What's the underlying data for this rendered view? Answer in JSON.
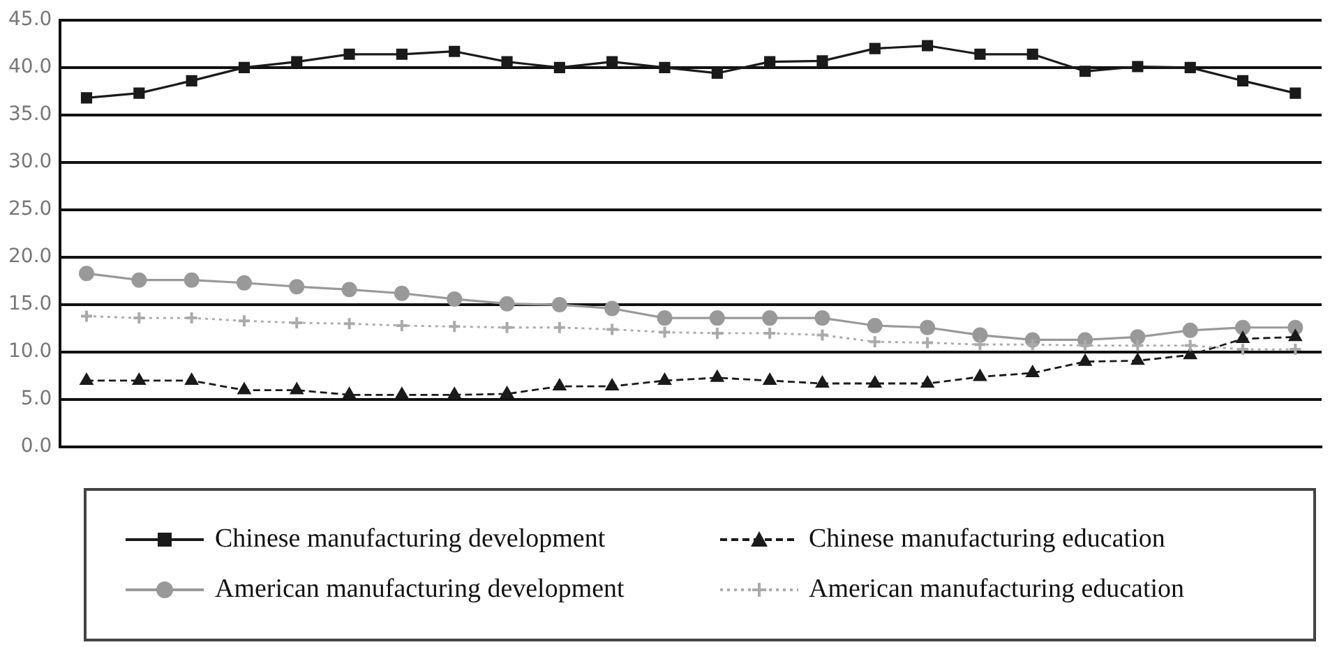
{
  "chart_data": {
    "type": "line",
    "categories": [
      null,
      null,
      null,
      null,
      null,
      null,
      null,
      null,
      null,
      null,
      null,
      null,
      null,
      null,
      null,
      null,
      null,
      null,
      null,
      null,
      null,
      null,
      null,
      null
    ],
    "series": [
      {
        "name": "Chinese manufacturing development",
        "color": "#1a1a1a",
        "marker": "square",
        "line_style": "solid",
        "values": [
          36.8,
          37.3,
          38.6,
          40.0,
          40.6,
          41.4,
          41.4,
          41.7,
          40.6,
          40.0,
          40.6,
          40.0,
          39.4,
          40.6,
          40.7,
          42.0,
          42.3,
          41.4,
          41.4,
          39.6,
          40.1,
          40.0,
          38.6,
          37.3
        ]
      },
      {
        "name": "Chinese manufacturing education",
        "color": "#1a1a1a",
        "marker": "triangle",
        "line_style": "dashed",
        "values": [
          7.0,
          7.0,
          7.0,
          6.0,
          6.0,
          5.5,
          5.5,
          5.5,
          5.6,
          6.4,
          6.4,
          7.0,
          7.3,
          7.0,
          6.7,
          6.7,
          6.7,
          7.4,
          7.8,
          9.0,
          9.1,
          9.7,
          11.4,
          11.6
        ]
      },
      {
        "name": "American manufacturing development",
        "color": "#999999",
        "marker": "circle",
        "line_style": "solid",
        "values": [
          18.3,
          17.6,
          17.6,
          17.3,
          16.9,
          16.6,
          16.2,
          15.6,
          15.1,
          15.0,
          14.6,
          13.6,
          13.6,
          13.6,
          13.6,
          12.8,
          12.6,
          11.8,
          11.3,
          11.3,
          11.6,
          12.3,
          12.6,
          12.6
        ]
      },
      {
        "name": "American manufacturing education",
        "color": "#aaaaaa",
        "marker": "cross",
        "line_style": "dotted",
        "values": [
          13.8,
          13.6,
          13.6,
          13.3,
          13.1,
          13.0,
          12.8,
          12.7,
          12.6,
          12.6,
          12.4,
          12.1,
          12.0,
          12.0,
          11.8,
          11.1,
          11.0,
          10.8,
          10.8,
          10.7,
          10.7,
          10.7,
          10.3,
          10.3
        ]
      }
    ],
    "ylim": [
      0,
      45
    ],
    "yticks": [
      {
        "value": 0,
        "label": "0.0"
      },
      {
        "value": 5,
        "label": "5.0"
      },
      {
        "value": 10,
        "label": "10.0"
      },
      {
        "value": 15,
        "label": "15.0"
      },
      {
        "value": 20,
        "label": "20.0"
      },
      {
        "value": 25,
        "label": "25.0"
      },
      {
        "value": 30,
        "label": "30.0"
      },
      {
        "value": 35,
        "label": "35.0"
      },
      {
        "value": 40,
        "label": "40.0"
      },
      {
        "value": 45,
        "label": "45.0"
      }
    ],
    "grid": "y",
    "legend": "bottom"
  }
}
